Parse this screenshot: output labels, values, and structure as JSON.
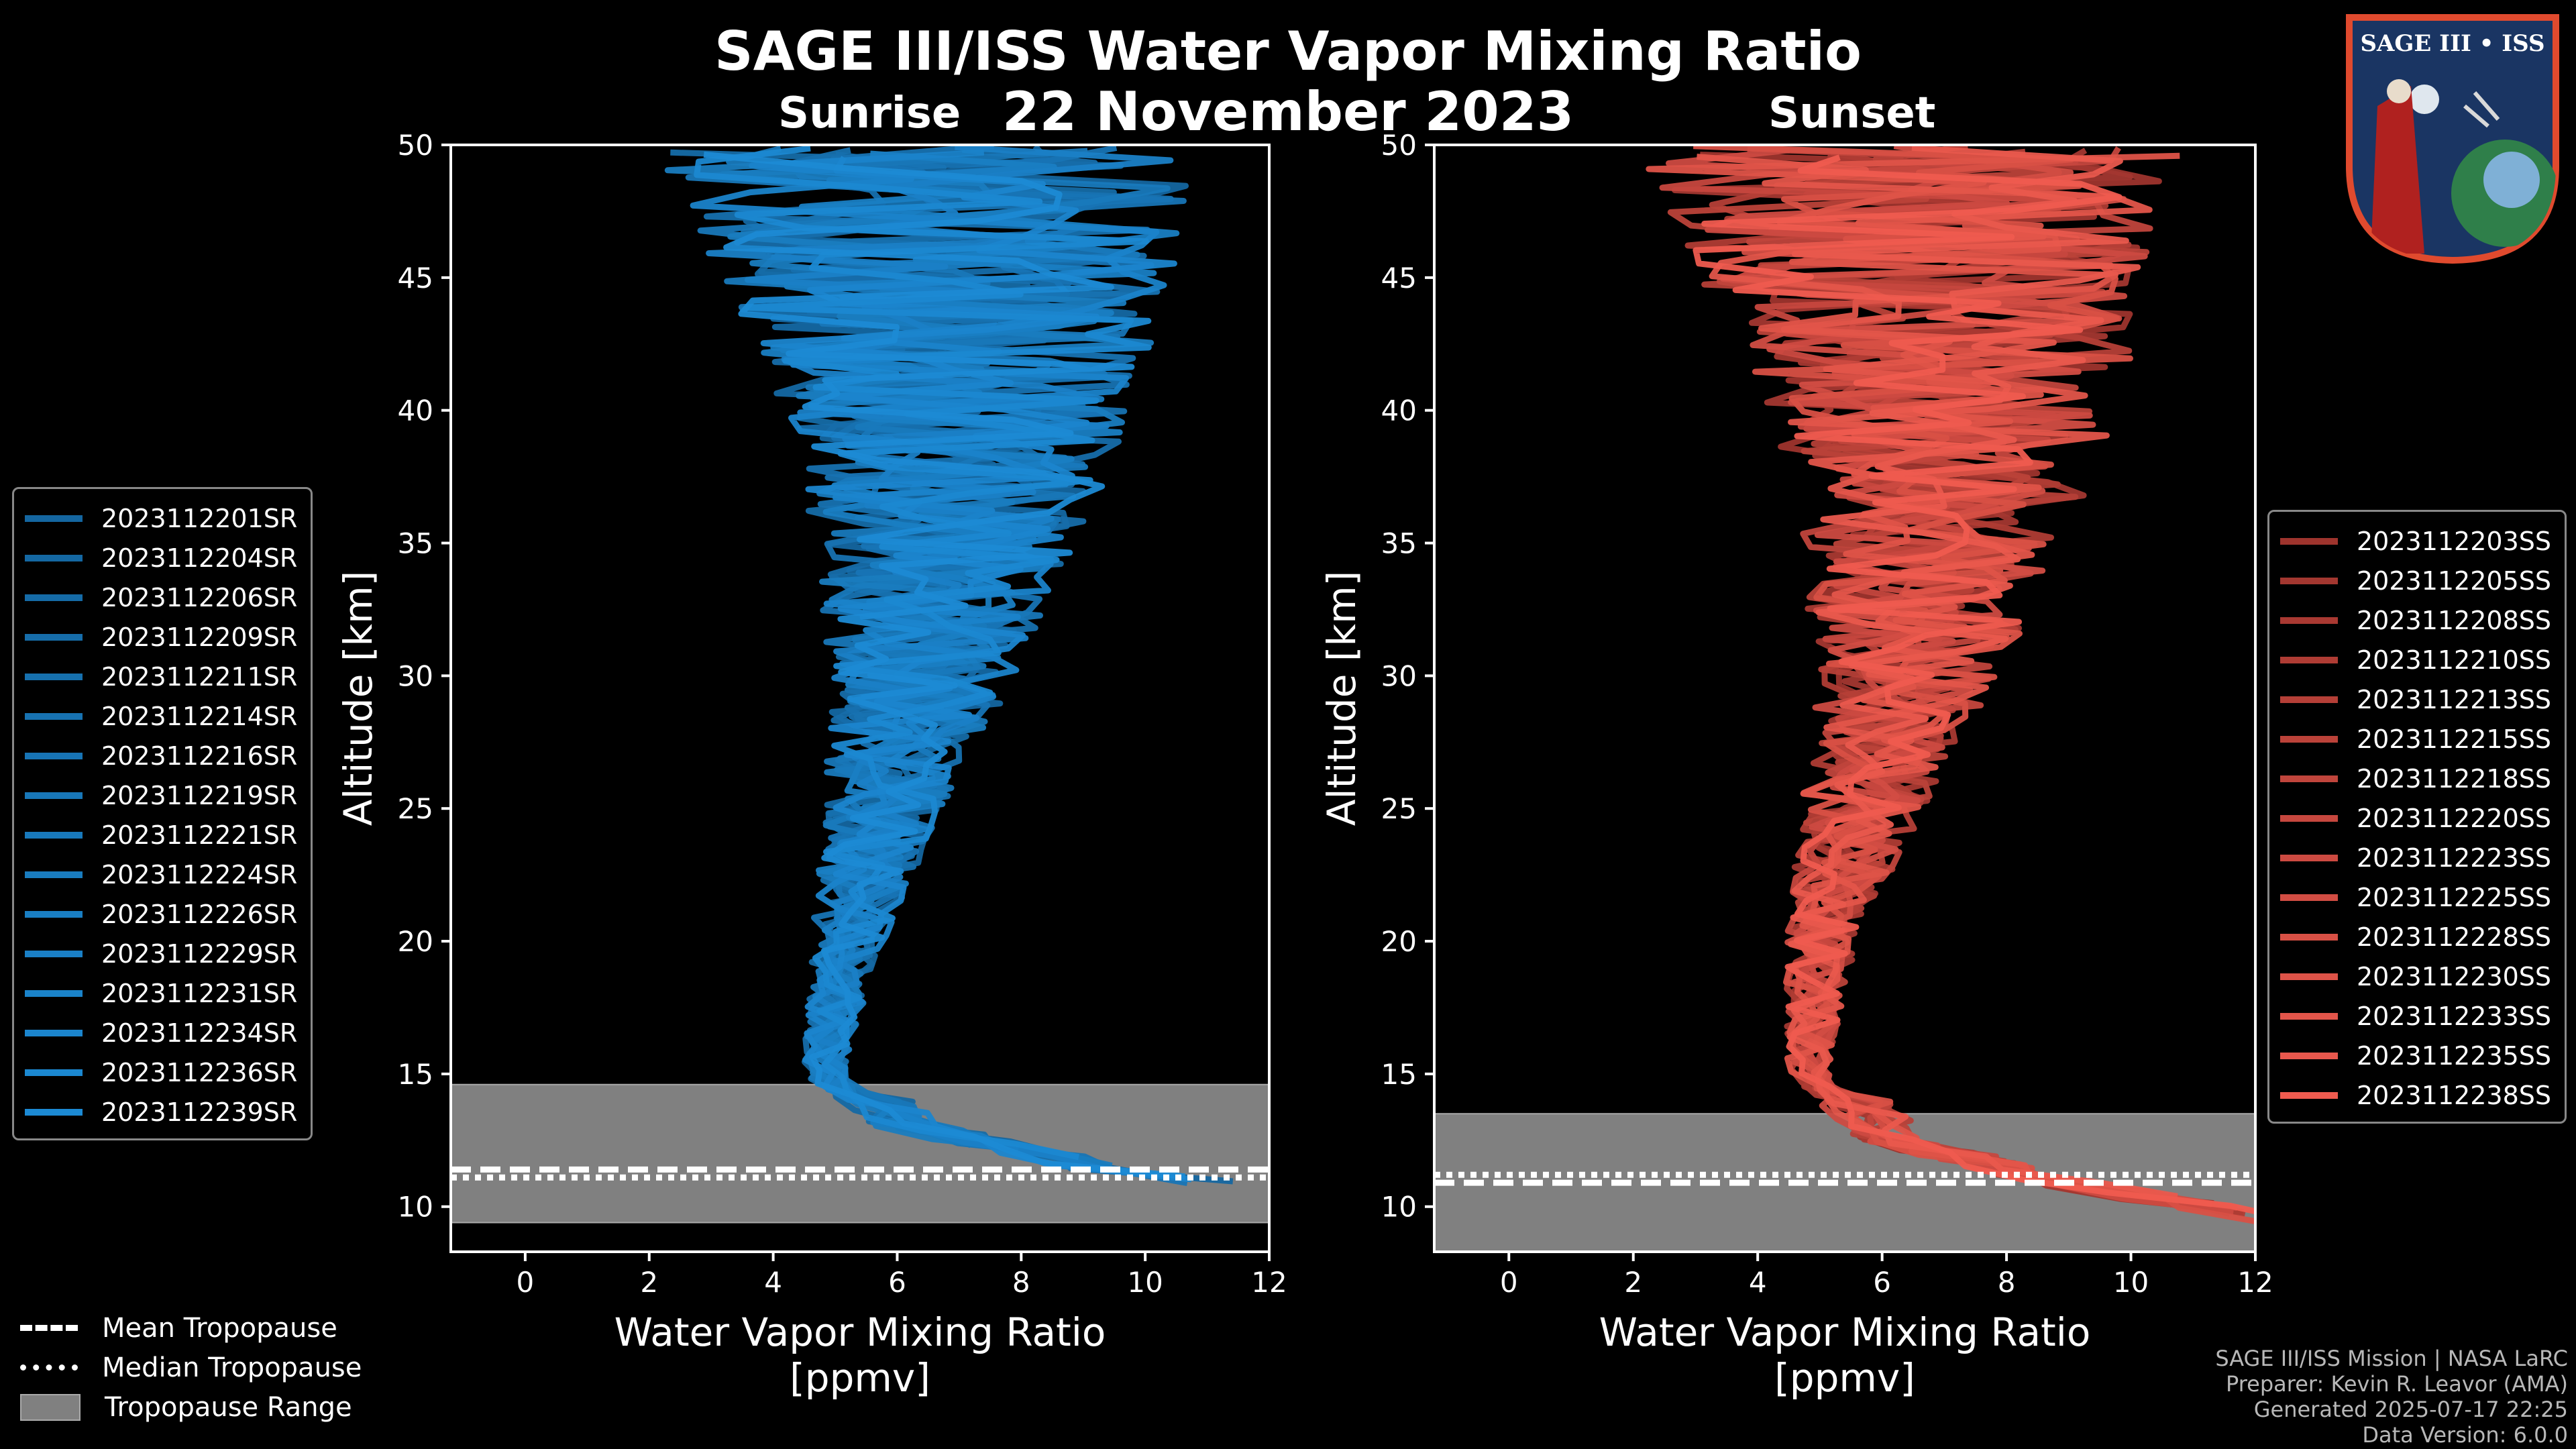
{
  "header": {
    "title": "SAGE III/ISS Water Vapor Mixing Ratio",
    "date": "22 November 2023",
    "left_panel_title": "Sunrise",
    "right_panel_title": "Sunset"
  },
  "logo": {
    "text": "SAGE III • ISS"
  },
  "colors": {
    "sunrise": "#1c8ad4",
    "sunset": "#ef5b4f",
    "tropopause_range": "#808080"
  },
  "chart_data": [
    {
      "type": "line",
      "name": "Sunrise",
      "xlabel": "Water Vapor Mixing Ratio\n[ppmv]",
      "ylabel": "Altitude [km]",
      "xlim": [
        -1.2,
        12
      ],
      "ylim": [
        8.3,
        50
      ],
      "xticks": [
        0,
        2,
        4,
        6,
        8,
        10,
        12
      ],
      "yticks": [
        10,
        15,
        20,
        25,
        30,
        35,
        40,
        45,
        50
      ],
      "tropopause": {
        "mean": 11.4,
        "median": 11.1,
        "range": [
          9.4,
          14.6
        ]
      },
      "series": [
        "2023112201SR",
        "2023112204SR",
        "2023112206SR",
        "2023112209SR",
        "2023112211SR",
        "2023112214SR",
        "2023112216SR",
        "2023112219SR",
        "2023112221SR",
        "2023112224SR",
        "2023112226SR",
        "2023112229SR",
        "2023112231SR",
        "2023112234SR",
        "2023112236SR",
        "2023112239SR"
      ],
      "profile_center": [
        {
          "alt": 10.5,
          "ppmv": 12.0
        },
        {
          "alt": 11.5,
          "ppmv": 9.0
        },
        {
          "alt": 13,
          "ppmv": 6.0
        },
        {
          "alt": 15,
          "ppmv": 4.8
        },
        {
          "alt": 20,
          "ppmv": 5.2
        },
        {
          "alt": 25,
          "ppmv": 5.8
        },
        {
          "alt": 30,
          "ppmv": 6.4
        },
        {
          "alt": 35,
          "ppmv": 6.8
        },
        {
          "alt": 40,
          "ppmv": 7.0
        },
        {
          "alt": 45,
          "ppmv": 6.8
        },
        {
          "alt": 50,
          "ppmv": 6.5
        }
      ]
    },
    {
      "type": "line",
      "name": "Sunset",
      "xlabel": "Water Vapor Mixing Ratio\n[ppmv]",
      "ylabel": "Altitude [km]",
      "xlim": [
        -1.2,
        12
      ],
      "ylim": [
        8.3,
        50
      ],
      "xticks": [
        0,
        2,
        4,
        6,
        8,
        10,
        12
      ],
      "yticks": [
        10,
        15,
        20,
        25,
        30,
        35,
        40,
        45,
        50
      ],
      "tropopause": {
        "mean": 10.9,
        "median": 11.2,
        "range": [
          8.3,
          13.5
        ]
      },
      "series": [
        "2023112203SS",
        "2023112205SS",
        "2023112208SS",
        "2023112210SS",
        "2023112213SS",
        "2023112215SS",
        "2023112218SS",
        "2023112220SS",
        "2023112223SS",
        "2023112225SS",
        "2023112228SS",
        "2023112230SS",
        "2023112233SS",
        "2023112235SS",
        "2023112238SS"
      ],
      "profile_center": [
        {
          "alt": 9.5,
          "ppmv": 12.0
        },
        {
          "alt": 11,
          "ppmv": 8.5
        },
        {
          "alt": 12.5,
          "ppmv": 6.0
        },
        {
          "alt": 15,
          "ppmv": 4.8
        },
        {
          "alt": 20,
          "ppmv": 5.0
        },
        {
          "alt": 25,
          "ppmv": 5.7
        },
        {
          "alt": 30,
          "ppmv": 6.4
        },
        {
          "alt": 35,
          "ppmv": 6.8
        },
        {
          "alt": 40,
          "ppmv": 7.0
        },
        {
          "alt": 45,
          "ppmv": 6.7
        },
        {
          "alt": 50,
          "ppmv": 6.5
        }
      ]
    }
  ],
  "tropopause_legend": {
    "mean": "Mean Tropopause",
    "median": "Median Tropopause",
    "range": "Tropopause Range"
  },
  "credits": {
    "mission": "SAGE III/ISS Mission | NASA LaRC",
    "preparer": "Preparer: Kevin R. Leavor (AMA)",
    "generated": "Generated 2025-07-17 22:25",
    "version": "Data Version: 6.0.0"
  }
}
